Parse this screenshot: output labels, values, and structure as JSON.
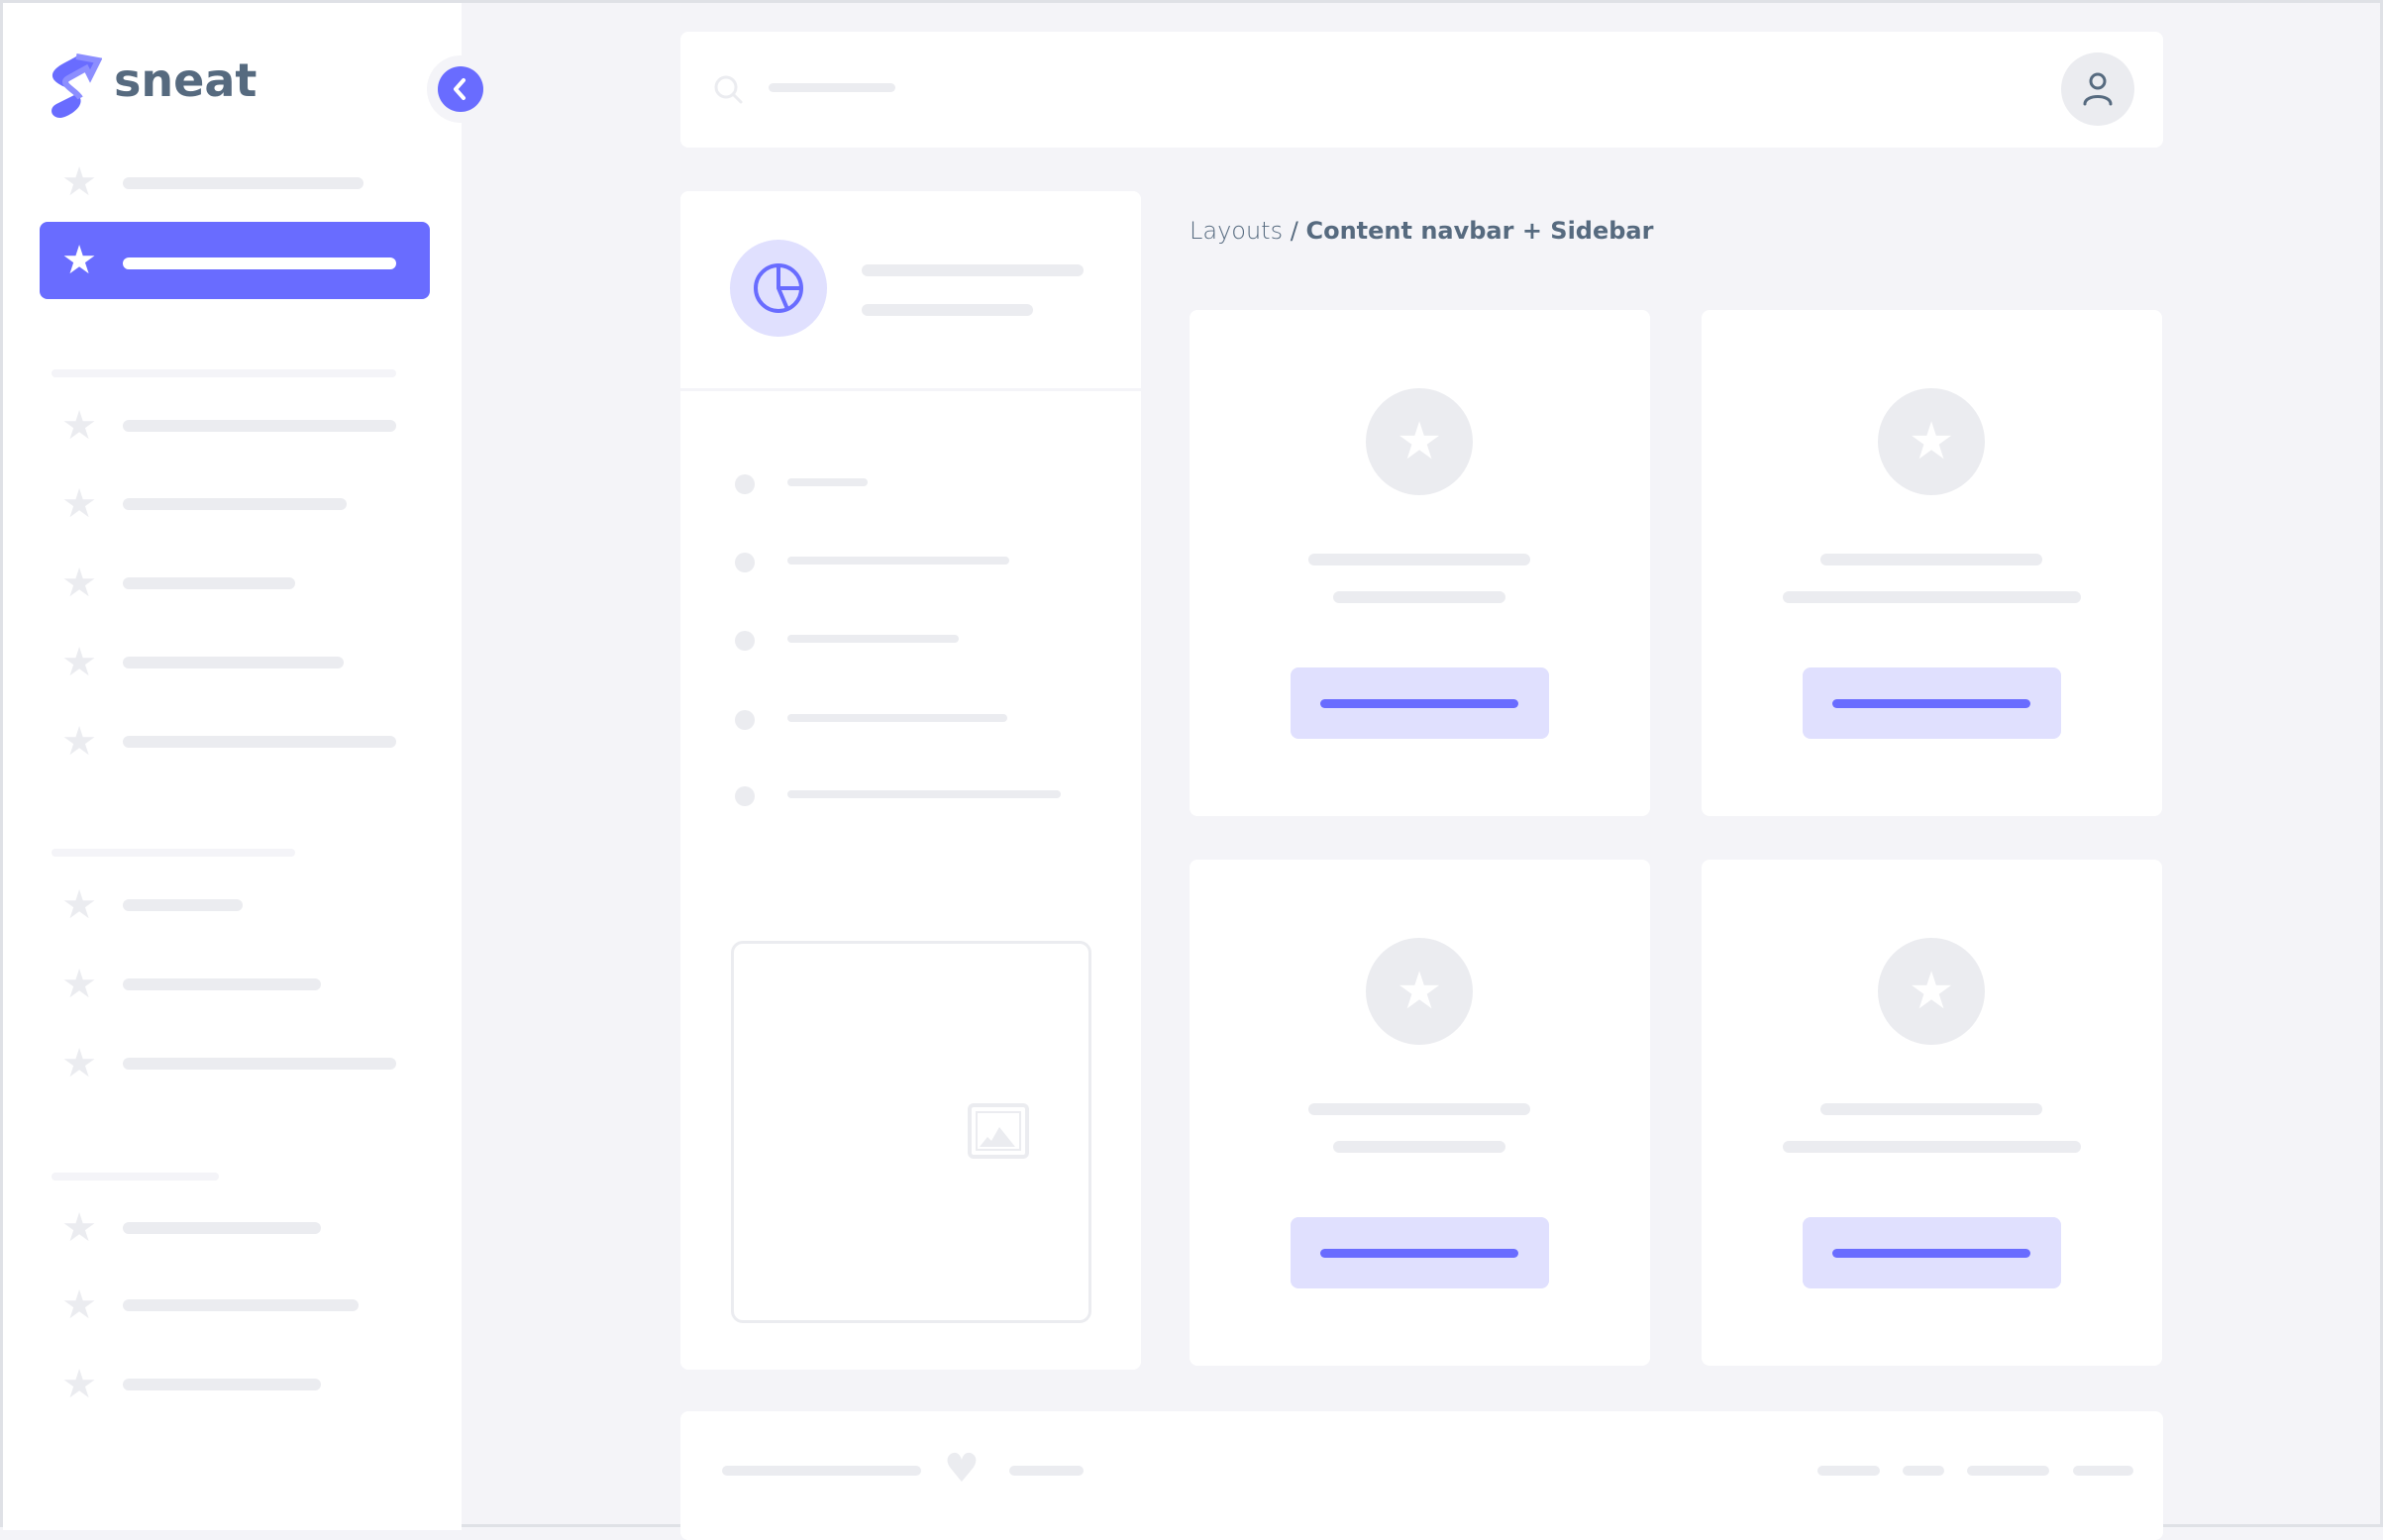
{
  "brand": {
    "name": "sneat",
    "logo": "sneat-s-logo"
  },
  "breadcrumb": {
    "parent": "Layouts",
    "separator": "/",
    "current": "Content navbar + Sidebar"
  },
  "colors": {
    "primary": "#696cff",
    "primary_light": "#e0e0fe",
    "skeleton": "#ebecf0",
    "background": "#f4f4f8",
    "text": "#566a7f"
  },
  "icons": {
    "collapse": "chevron-left-icon",
    "search": "search-icon",
    "user": "user-icon",
    "menu_item": "star-icon",
    "panel": "pie-chart-icon",
    "image": "image-icon",
    "footer": "heart-icon"
  }
}
